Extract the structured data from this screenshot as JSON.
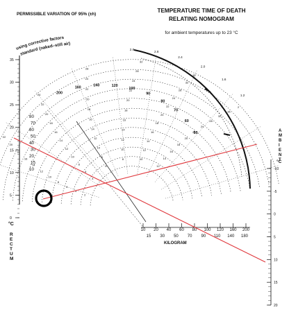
{
  "header": {
    "permissible": "PERMISSIBLE VARIATION OF 95% (±h)",
    "title_line1": "TEMPERATURE TIME OF DEATH",
    "title_line2": "RELATING NOMOGRAM",
    "subtitle": "for ambient temperatures up to 23 °C"
  },
  "arc_labels": {
    "corrective": "using corrective factors",
    "standard": "standard (naked–still air)"
  },
  "rectum": {
    "unit": "°C",
    "name": "RECTUM",
    "ticks": [
      "35",
      "30",
      "25",
      "20",
      "15",
      "10",
      "5",
      "0"
    ]
  },
  "ambient": {
    "name": "AMBIENT",
    "unit": "°C",
    "ticks": [
      "-10",
      "-5",
      "0",
      "5",
      "10",
      "15",
      "20"
    ]
  },
  "weight": {
    "name": "KILOGRAM",
    "top_row": [
      "10",
      "20",
      "40",
      "60",
      "80",
      "100",
      "120",
      "160",
      "200"
    ],
    "bottom_row": [
      "15",
      "30",
      "50",
      "70",
      "90",
      "110",
      "140",
      "180"
    ]
  },
  "body_weight_labels": [
    "80",
    "70",
    "60",
    "50",
    "40",
    "30",
    "20",
    "15",
    "10"
  ],
  "arc_numbers": {
    "top": [
      "200",
      "160",
      "140",
      "120",
      "100",
      "90",
      "80",
      "70",
      "60",
      "50"
    ],
    "inner": [
      "2",
      "4",
      "6",
      "8",
      "10",
      "12",
      "14",
      "16",
      "18",
      "20",
      "22",
      "24",
      "28",
      "32",
      "36"
    ],
    "fractions": [
      "2.8",
      "2.8",
      "2.4",
      "2.0",
      "1.6",
      "1.2"
    ]
  },
  "colors": {
    "ink": "#111111",
    "red_line": "#e0393e",
    "paper": "#ffffff"
  }
}
